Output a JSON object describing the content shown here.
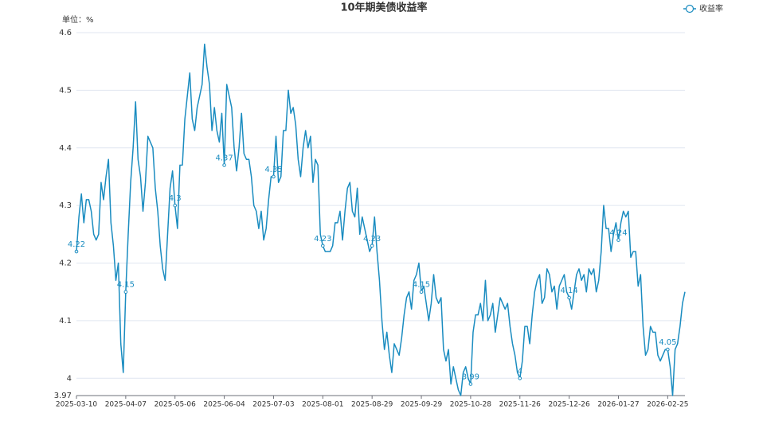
{
  "chart_data": {
    "type": "line",
    "title": "10年期美债收益率",
    "y_axis_label": "单位：%",
    "categories": [
      "2025-03-10",
      null,
      null,
      null,
      null,
      null,
      null,
      null,
      null,
      null,
      null,
      null,
      null,
      null,
      null,
      null,
      null,
      null,
      null,
      null,
      "2025-04-07",
      null,
      null,
      null,
      null,
      null,
      null,
      null,
      null,
      null,
      null,
      null,
      null,
      null,
      null,
      null,
      null,
      null,
      null,
      null,
      "2025-05-06",
      null,
      null,
      null,
      null,
      null,
      null,
      null,
      null,
      null,
      null,
      null,
      null,
      null,
      null,
      null,
      null,
      null,
      null,
      null,
      "2025-06-04",
      null,
      null,
      null,
      null,
      null,
      null,
      null,
      null,
      null,
      null,
      null,
      null,
      null,
      null,
      null,
      null,
      null,
      null,
      null,
      "2025-07-03",
      null,
      null,
      null,
      null,
      null,
      null,
      null,
      null,
      null,
      null,
      null,
      null,
      null,
      null,
      null,
      null,
      null,
      null,
      null,
      "2025-08-01",
      null,
      null,
      null,
      null,
      null,
      null,
      null,
      null,
      null,
      null,
      null,
      null,
      null,
      null,
      null,
      null,
      null,
      null,
      null,
      "2025-08-29",
      null,
      null,
      null,
      null,
      null,
      null,
      null,
      null,
      null,
      null,
      null,
      null,
      null,
      null,
      null,
      null,
      null,
      null,
      null,
      "2025-09-29",
      null,
      null,
      null,
      null,
      null,
      null,
      null,
      null,
      null,
      null,
      null,
      null,
      null,
      null,
      null,
      null,
      null,
      null,
      null,
      "2025-10-28",
      null,
      null,
      null,
      null,
      null,
      null,
      null,
      null,
      null,
      null,
      null,
      null,
      null,
      null,
      null,
      null,
      null,
      null,
      null,
      "2025-11-26",
      null,
      null,
      null,
      null,
      null,
      null,
      null,
      null,
      null,
      null,
      null,
      null,
      null,
      null,
      null,
      null,
      null,
      null,
      null,
      "2025-12-26",
      null,
      null,
      null,
      null,
      null,
      null,
      null,
      null,
      null,
      null,
      null,
      null,
      null,
      null,
      null,
      null,
      null,
      null,
      null,
      "2026-01-27",
      null,
      null,
      null,
      null,
      null,
      null,
      null,
      null,
      null,
      null,
      null,
      null,
      null,
      null,
      null,
      null,
      null,
      null,
      null,
      "2026-02-25",
      null,
      null,
      null,
      null,
      null,
      null,
      null
    ],
    "series": [
      {
        "name": "收益率",
        "color": "#1a8cc0",
        "values": [
          4.22,
          4.28,
          4.32,
          4.27,
          4.31,
          4.31,
          4.29,
          4.25,
          4.24,
          4.25,
          4.34,
          4.31,
          4.35,
          4.38,
          4.27,
          4.23,
          4.17,
          4.2,
          4.06,
          4.01,
          4.15,
          4.25,
          4.34,
          4.4,
          4.48,
          4.38,
          4.35,
          4.29,
          4.34,
          4.42,
          4.41,
          4.4,
          4.33,
          4.29,
          4.23,
          4.19,
          4.17,
          4.25,
          4.33,
          4.36,
          4.3,
          4.26,
          4.37,
          4.37,
          4.45,
          4.49,
          4.53,
          4.45,
          4.43,
          4.47,
          4.49,
          4.51,
          4.58,
          4.54,
          4.51,
          4.43,
          4.47,
          4.43,
          4.41,
          4.46,
          4.37,
          4.51,
          4.49,
          4.47,
          4.4,
          4.36,
          4.4,
          4.46,
          4.39,
          4.38,
          4.38,
          4.35,
          4.3,
          4.29,
          4.26,
          4.29,
          4.24,
          4.26,
          4.31,
          4.35,
          4.35,
          4.42,
          4.34,
          4.35,
          4.43,
          4.43,
          4.5,
          4.46,
          4.47,
          4.44,
          4.38,
          4.35,
          4.4,
          4.43,
          4.4,
          4.42,
          4.34,
          4.38,
          4.37,
          4.25,
          4.23,
          4.22,
          4.22,
          4.22,
          4.23,
          4.27,
          4.27,
          4.29,
          4.24,
          4.29,
          4.33,
          4.34,
          4.29,
          4.28,
          4.33,
          4.25,
          4.28,
          4.26,
          4.24,
          4.22,
          4.23,
          4.28,
          4.22,
          4.17,
          4.1,
          4.05,
          4.08,
          4.04,
          4.01,
          4.06,
          4.05,
          4.04,
          4.07,
          4.11,
          4.14,
          4.15,
          4.12,
          4.17,
          4.18,
          4.2,
          4.15,
          4.16,
          4.13,
          4.1,
          4.13,
          4.18,
          4.14,
          4.13,
          4.14,
          4.05,
          4.03,
          4.05,
          3.99,
          4.02,
          4.0,
          3.98,
          3.97,
          4.01,
          4.02,
          4.0,
          3.99,
          4.08,
          4.11,
          4.11,
          4.13,
          4.1,
          4.17,
          4.1,
          4.11,
          4.13,
          4.08,
          4.11,
          4.14,
          4.13,
          4.12,
          4.13,
          4.09,
          4.06,
          4.04,
          4.01,
          4.0,
          4.03,
          4.09,
          4.09,
          4.06,
          4.11,
          4.15,
          4.17,
          4.18,
          4.13,
          4.14,
          4.19,
          4.18,
          4.15,
          4.16,
          4.12,
          4.16,
          4.17,
          4.18,
          4.15,
          4.14,
          4.12,
          4.15,
          4.18,
          4.19,
          4.17,
          4.18,
          4.15,
          4.19,
          4.18,
          4.19,
          4.15,
          4.17,
          4.22,
          4.3,
          4.26,
          4.26,
          4.22,
          4.25,
          4.27,
          4.24,
          4.27,
          4.29,
          4.28,
          4.29,
          4.21,
          4.22,
          4.22,
          4.16,
          4.18,
          4.09,
          4.04,
          4.05,
          4.09,
          4.08,
          4.08,
          4.04,
          4.03,
          4.04,
          4.05,
          4.05,
          4.02,
          3.97,
          4.05,
          4.06,
          4.09,
          4.13,
          4.15
        ]
      }
    ],
    "ylim": [
      3.97,
      4.6
    ],
    "yticks": [
      3.97,
      4,
      4.1,
      4.2,
      4.3,
      4.4,
      4.5,
      4.6
    ],
    "grid": true,
    "legend": "top-right"
  }
}
